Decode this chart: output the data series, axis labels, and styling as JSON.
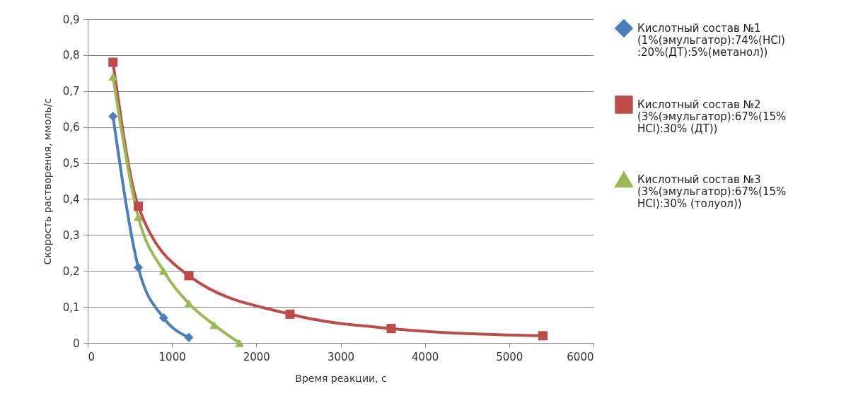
{
  "chart_data": {
    "type": "line",
    "xlabel": "Время реакции, с",
    "ylabel": "Скорость растворения, ммоль/с",
    "xlim": [
      0,
      6000
    ],
    "xticks": [
      0,
      1000,
      2000,
      3000,
      4000,
      5000,
      6000
    ],
    "ylim": [
      0,
      0.9
    ],
    "yticks": [
      0,
      {
        "value": 0.1,
        "label": "0,1"
      },
      {
        "value": 0.2,
        "label": "0,2"
      },
      {
        "value": 0.3,
        "label": "0,3"
      },
      {
        "value": 0.4,
        "label": "0,4"
      },
      {
        "value": 0.5,
        "label": "0,5"
      },
      {
        "value": 0.6,
        "label": "0,6"
      },
      {
        "value": 0.7,
        "label": "0,7"
      },
      {
        "value": 0.8,
        "label": "0,8"
      },
      {
        "value": 0.9,
        "label": "0,9"
      }
    ],
    "grid": "y",
    "legend": "right",
    "series": [
      {
        "name": "Кислотный состав №1 (1%(эмульгатор):74%(HCl):20%(ДТ):5%(метанол))",
        "color": "#4a7ebb",
        "marker": "diamond",
        "x": [
          300,
          600,
          900,
          1200
        ],
        "values": [
          0.63,
          0.21,
          0.07,
          0.015
        ]
      },
      {
        "name": "Кислотный состав №2 (3%(эмульгатор):67%(15% HCl):30% (ДТ))",
        "color": "#be4b48",
        "marker": "square",
        "x": [
          300,
          600,
          1200,
          2400,
          3600,
          5400
        ],
        "values": [
          0.78,
          0.38,
          0.187,
          0.08,
          0.04,
          0.02
        ]
      },
      {
        "name": "Кислотный состав №3 (3%(эмульгатор):67%(15% HCl):30% (толуол))",
        "color": "#98b954",
        "marker": "triangle",
        "x": [
          300,
          600,
          900,
          1200,
          1500,
          1800
        ],
        "values": [
          0.74,
          0.35,
          0.2,
          0.11,
          0.05,
          0
        ]
      }
    ]
  }
}
